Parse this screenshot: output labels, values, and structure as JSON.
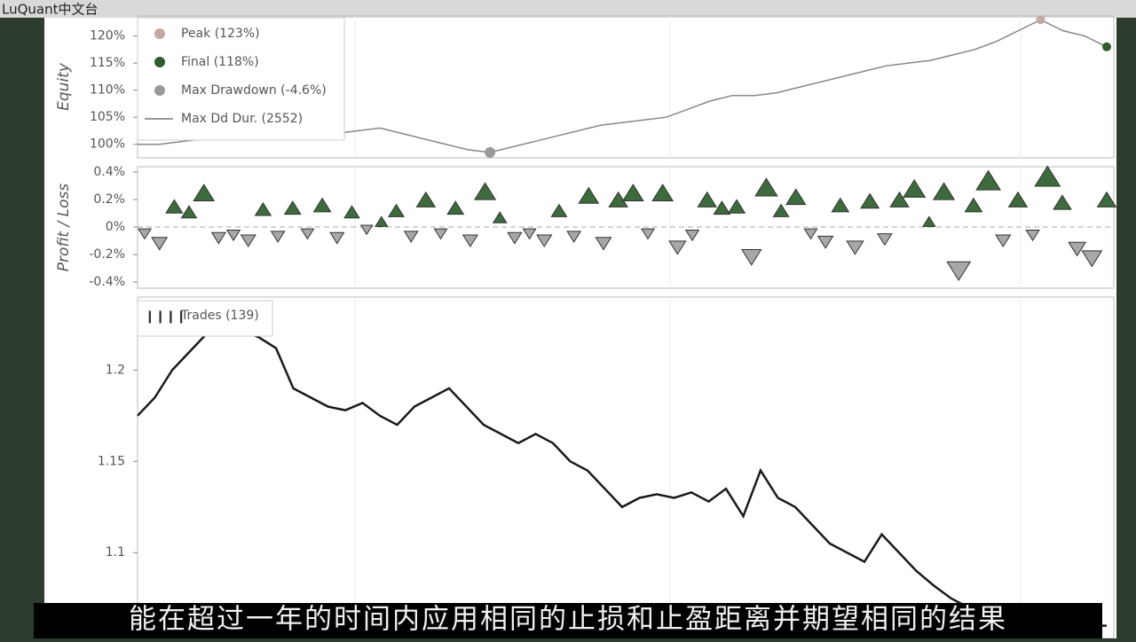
{
  "watermark": "LuQuant中文台",
  "subtitle": "能在超过一年的时间内应用相同的止损和止盈距离并期望相同的结果",
  "chart_data": [
    {
      "type": "line",
      "ylabel": "Equity",
      "color": "#888888",
      "values": [
        100,
        100,
        100.5,
        101,
        101.5,
        102,
        102.5,
        103,
        102.5,
        102,
        102.5,
        103,
        102,
        101,
        100,
        99,
        98.5,
        99.5,
        100.5,
        101.5,
        102.5,
        103.5,
        104,
        104.5,
        105,
        106.5,
        108,
        109,
        109,
        109.5,
        110.5,
        111.5,
        112.5,
        113.5,
        114.5,
        115,
        115.5,
        116.5,
        117.5,
        119,
        121,
        123,
        121,
        120,
        118
      ],
      "ylim": [
        97.5,
        123.7
      ],
      "yticks": [
        {
          "value": 100,
          "label": "100%"
        },
        {
          "value": 105,
          "label": "105%"
        },
        {
          "value": 110,
          "label": "110%"
        },
        {
          "value": 115,
          "label": "115%"
        },
        {
          "value": 120,
          "label": "120%"
        }
      ],
      "legend": [
        {
          "label": "Peak (123%)",
          "value": 123,
          "color": "#c4a8a8"
        },
        {
          "label": "Final (118%)",
          "value": 118,
          "color": "#2f5d2f"
        },
        {
          "label": "Max Drawdown (-4.6%)",
          "value": -4.6,
          "color": "#9a9a9a"
        },
        {
          "label": "Max Dd Dur. (2552)",
          "value": 2552,
          "color": "#999999"
        }
      ]
    },
    {
      "type": "scatter",
      "ylabel": "Profit / Loss",
      "up_color": "#3d6b3d",
      "down_color": "#a8a8a8",
      "values": [
        -0.05,
        -0.12,
        0.15,
        0.11,
        0.25,
        -0.08,
        -0.06,
        -0.1,
        0.13,
        -0.07,
        0.14,
        -0.05,
        0.16,
        -0.08,
        0.11,
        -0.02,
        0.04,
        0.12,
        -0.07,
        0.2,
        -0.05,
        0.14,
        -0.1,
        0.26,
        0.07,
        -0.08,
        -0.05,
        -0.1,
        0.12,
        -0.07,
        0.23,
        -0.12,
        0.2,
        0.25,
        -0.05,
        0.25,
        -0.15,
        -0.06,
        0.2,
        0.14,
        0.15,
        -0.22,
        0.29,
        0.12,
        0.22,
        -0.05,
        -0.11,
        0.16,
        -0.15,
        0.19,
        -0.09,
        0.2,
        0.28,
        0.04,
        0.26,
        -0.32,
        0.16,
        0.34,
        -0.1,
        0.2,
        -0.06,
        0.37,
        0.18,
        -0.16,
        -0.23,
        0.2
      ],
      "ylim": [
        -0.445,
        0.439
      ],
      "yticks": [
        {
          "value": -0.4,
          "label": "-0.4%"
        },
        {
          "value": -0.2,
          "label": "-0.2%"
        },
        {
          "value": 0,
          "label": "0%"
        },
        {
          "value": 0.2,
          "label": "0.2%"
        },
        {
          "value": 0.4,
          "label": "0.4%"
        }
      ]
    },
    {
      "type": "line",
      "color": "#1a1a1a",
      "legend_label": "Trades (139)",
      "values": [
        1.175,
        1.185,
        1.2,
        1.21,
        1.22,
        1.225,
        1.222,
        1.218,
        1.212,
        1.19,
        1.185,
        1.18,
        1.178,
        1.182,
        1.175,
        1.17,
        1.18,
        1.185,
        1.19,
        1.18,
        1.17,
        1.165,
        1.16,
        1.165,
        1.16,
        1.15,
        1.145,
        1.135,
        1.125,
        1.13,
        1.132,
        1.13,
        1.133,
        1.128,
        1.135,
        1.12,
        1.145,
        1.13,
        1.125,
        1.115,
        1.105,
        1.1,
        1.095,
        1.11,
        1.1,
        1.09,
        1.082,
        1.075,
        1.07,
        1.07,
        1.07,
        1.07,
        1.065,
        1.06,
        1.06,
        1.06,
        1.06
      ],
      "ylim": [
        1.053,
        1.24
      ],
      "yticks": [
        1.1,
        1.15,
        1.2
      ]
    }
  ]
}
